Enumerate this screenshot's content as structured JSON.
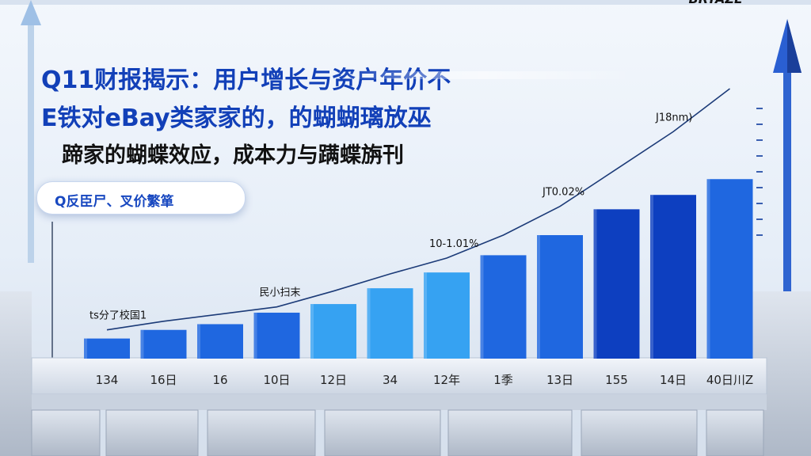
{
  "headline": {
    "line1": "Q11财报揭示：用户增长与资户年价不",
    "line2": "E铁对eBay类家家的，的蝴蝴璃放巫",
    "line3": "蹄家的蝴蝶效应，成本力与蹒蝶旃刊"
  },
  "badge": {
    "label": "Q反臣尸、叉价繁箪"
  },
  "colors": {
    "bar_primary": "#1f67e0",
    "bar_light": "#36a2f2",
    "bar_deep": "#0d3fc0",
    "trend_line": "#1c3b78",
    "headline_blue": "#1240b8"
  },
  "chart_data": {
    "type": "bar",
    "categories": [
      "134",
      "16日",
      "16",
      "10日",
      "12日",
      "34",
      "12年",
      "1季",
      "13日",
      "155",
      "14日",
      "40日川Z"
    ],
    "values": [
      14,
      20,
      24,
      32,
      38,
      49,
      60,
      72,
      86,
      104,
      114,
      125
    ],
    "trend": [
      20,
      26,
      31,
      36,
      47,
      59,
      70,
      86,
      106,
      132,
      158,
      188
    ],
    "ylim": [
      0,
      215
    ],
    "annotations": [
      {
        "index": 0,
        "text": "ts分了校国1"
      },
      {
        "index": 3,
        "text": "民小扫末"
      },
      {
        "index": 6,
        "text": "10-1.01%"
      },
      {
        "index": 8,
        "text": "JT0.02%"
      },
      {
        "index": 10,
        "text": "J18nm)"
      },
      {
        "index": 11,
        "text": "BRTAZE"
      }
    ]
  }
}
